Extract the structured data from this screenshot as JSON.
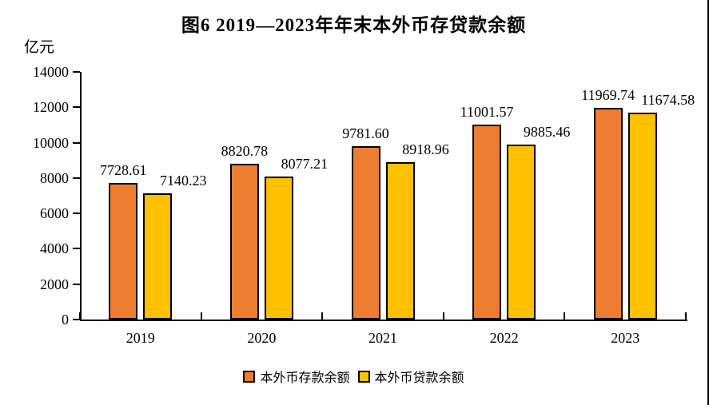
{
  "title": "图6  2019—2023年年末本外币存贷款余额",
  "unit_label": "亿元",
  "colors": {
    "deposit": "#ED7D31",
    "loan": "#FFC000",
    "axis": "#000000",
    "text": "#000000",
    "background": "#FFFFFF"
  },
  "chart_data": {
    "type": "bar",
    "title": "图6  2019—2023年年末本外币存贷款余额",
    "ylabel": "亿元",
    "xlabel": "",
    "categories": [
      "2019",
      "2020",
      "2021",
      "2022",
      "2023"
    ],
    "series": [
      {
        "name": "本外币存款余额",
        "color_key": "deposit",
        "values": [
          7728.61,
          8820.78,
          9781.6,
          11001.57,
          11969.74
        ]
      },
      {
        "name": "本外币贷款余额",
        "color_key": "loan",
        "values": [
          7140.23,
          8077.21,
          8918.96,
          9885.46,
          11674.58
        ]
      }
    ],
    "ylim": [
      0,
      14000
    ],
    "yticks": [
      0,
      2000,
      4000,
      6000,
      8000,
      10000,
      12000,
      14000
    ],
    "grid": false,
    "value_labels_shown": true,
    "value_label_decimals": 2,
    "legend_position": "bottom"
  }
}
